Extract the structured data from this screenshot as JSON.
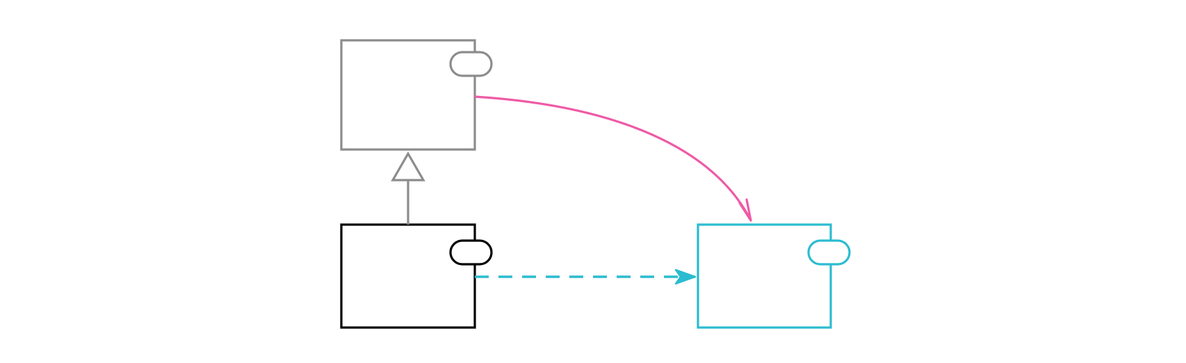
{
  "diagram": {
    "type": "uml-component-relationships",
    "colors": {
      "background": "#ffffff",
      "parent_component": "#8c8c8c",
      "child_component": "#000000",
      "target_component": "#2bbcd0",
      "association": "#ef5aa6",
      "dependency": "#2bbcd0",
      "generalization": "#8c8c8c"
    },
    "components": [
      {
        "id": "parent-component",
        "name": "",
        "color_key": "parent_component",
        "has_port": true
      },
      {
        "id": "child-component",
        "name": "",
        "color_key": "child_component",
        "has_port": true
      },
      {
        "id": "target-component",
        "name": "",
        "color_key": "target_component",
        "has_port": true
      }
    ],
    "relationships": [
      {
        "from": "child-component",
        "to": "parent-component",
        "kind": "generalization",
        "line": "solid",
        "arrowhead": "hollow-triangle"
      },
      {
        "from": "parent-component",
        "to": "target-component",
        "kind": "association",
        "line": "solid-curved",
        "arrowhead": "open-arrow"
      },
      {
        "from": "child-component",
        "to": "target-component",
        "kind": "dependency",
        "line": "dashed",
        "arrowhead": "open-arrow"
      }
    ]
  }
}
